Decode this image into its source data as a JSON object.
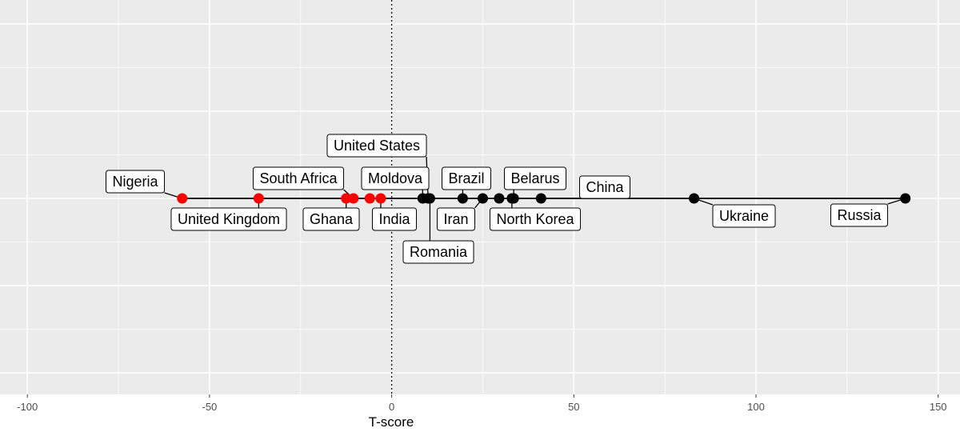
{
  "chart_data": {
    "type": "scatter",
    "xlabel": "T-score",
    "ylabel": "",
    "xlim": [
      -105,
      155
    ],
    "x_ticks": [
      -100,
      -50,
      0,
      50,
      100,
      150
    ],
    "x_tick_labels": [
      "-100",
      "-50",
      "0",
      "50",
      "100",
      "150"
    ],
    "reference_line_x": 0,
    "grid": true,
    "colors": {
      "negative": "#ff0000",
      "positive": "#000000",
      "panel": "#ebebeb",
      "grid": "#ffffff"
    },
    "points": [
      {
        "x": -57.5,
        "label": "Nigeria",
        "color": "#ff0000"
      },
      {
        "x": -36.5,
        "label": "United Kingdom",
        "color": "#ff0000"
      },
      {
        "x": -12.5,
        "label": "Ghana",
        "color": "#ff0000"
      },
      {
        "x": -10.5,
        "label": "South Africa",
        "color": "#ff0000"
      },
      {
        "x": -6.0,
        "label": null,
        "color": "#ff0000"
      },
      {
        "x": -3.0,
        "label": "India",
        "color": "#ff0000"
      },
      {
        "x": 8.5,
        "label": "Moldova",
        "color": "#000000"
      },
      {
        "x": 10.0,
        "label": "United States",
        "color": "#000000"
      },
      {
        "x": 10.5,
        "label": "Romania",
        "color": "#000000"
      },
      {
        "x": 19.5,
        "label": "Brazil",
        "color": "#000000"
      },
      {
        "x": 25.0,
        "label": "Iran",
        "color": "#000000"
      },
      {
        "x": 29.5,
        "label": null,
        "color": "#000000"
      },
      {
        "x": 33.0,
        "label": "North Korea",
        "color": "#000000"
      },
      {
        "x": 33.5,
        "label": "Belarus",
        "color": "#000000"
      },
      {
        "x": 41.0,
        "label": "China",
        "color": "#000000"
      },
      {
        "x": 83.0,
        "label": "Ukraine",
        "color": "#000000"
      },
      {
        "x": 141.0,
        "label": "Russia",
        "color": "#000000"
      }
    ]
  }
}
